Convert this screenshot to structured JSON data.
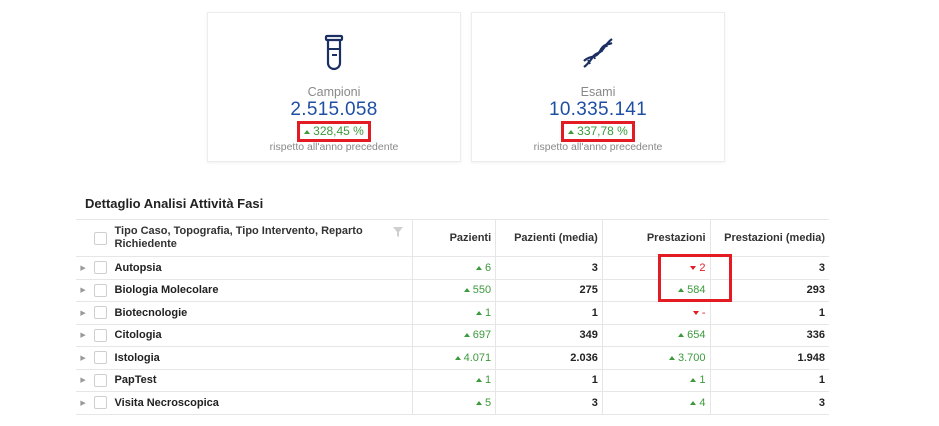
{
  "cards": [
    {
      "icon": "test-tube-icon",
      "label": "Campioni",
      "value": "2.515.058",
      "delta": "328,45 %",
      "subtitle": "rispetto all'anno precedente"
    },
    {
      "icon": "dna-icon",
      "label": "Esami",
      "value": "10.335.141",
      "delta": "337,78 %",
      "subtitle": "rispetto all'anno precedente"
    }
  ],
  "section": {
    "title": "Dettaglio Analisi Attività Fasi"
  },
  "table": {
    "headers": {
      "name": "Tipo Caso, Topografia, Tipo Intervento, Reparto Richiedente",
      "pazienti": "Pazienti",
      "pazienti_media": "Pazienti (media)",
      "prestazioni": "Prestazioni",
      "prestazioni_media": "Prestazioni (media)"
    },
    "rows": [
      {
        "name": "Autopsia",
        "pazienti": "6",
        "pazienti_dir": "up",
        "pazienti_media": "3",
        "prestazioni": "2",
        "prestazioni_dir": "down",
        "prestazioni_media": "3"
      },
      {
        "name": "Biologia Molecolare",
        "pazienti": "550",
        "pazienti_dir": "up",
        "pazienti_media": "275",
        "prestazioni": "584",
        "prestazioni_dir": "up",
        "prestazioni_media": "293"
      },
      {
        "name": "Biotecnologie",
        "pazienti": "1",
        "pazienti_dir": "up",
        "pazienti_media": "1",
        "prestazioni": "-",
        "prestazioni_dir": "down",
        "prestazioni_media": "1"
      },
      {
        "name": "Citologia",
        "pazienti": "697",
        "pazienti_dir": "up",
        "pazienti_media": "349",
        "prestazioni": "654",
        "prestazioni_dir": "up",
        "prestazioni_media": "336"
      },
      {
        "name": "Istologia",
        "pazienti": "4.071",
        "pazienti_dir": "up",
        "pazienti_media": "2.036",
        "prestazioni": "3.700",
        "prestazioni_dir": "up",
        "prestazioni_media": "1.948"
      },
      {
        "name": "PapTest",
        "pazienti": "1",
        "pazienti_dir": "up",
        "pazienti_media": "1",
        "prestazioni": "1",
        "prestazioni_dir": "up",
        "prestazioni_media": "1"
      },
      {
        "name": "Visita Necroscopica",
        "pazienti": "5",
        "pazienti_dir": "up",
        "pazienti_media": "3",
        "prestazioni": "4",
        "prestazioni_dir": "up",
        "prestazioni_media": "3"
      }
    ]
  },
  "colors": {
    "accent_blue": "#1f4fa3",
    "up_green": "#3c9a3c",
    "down_red": "#e31b23",
    "highlight": "#e31b23"
  }
}
